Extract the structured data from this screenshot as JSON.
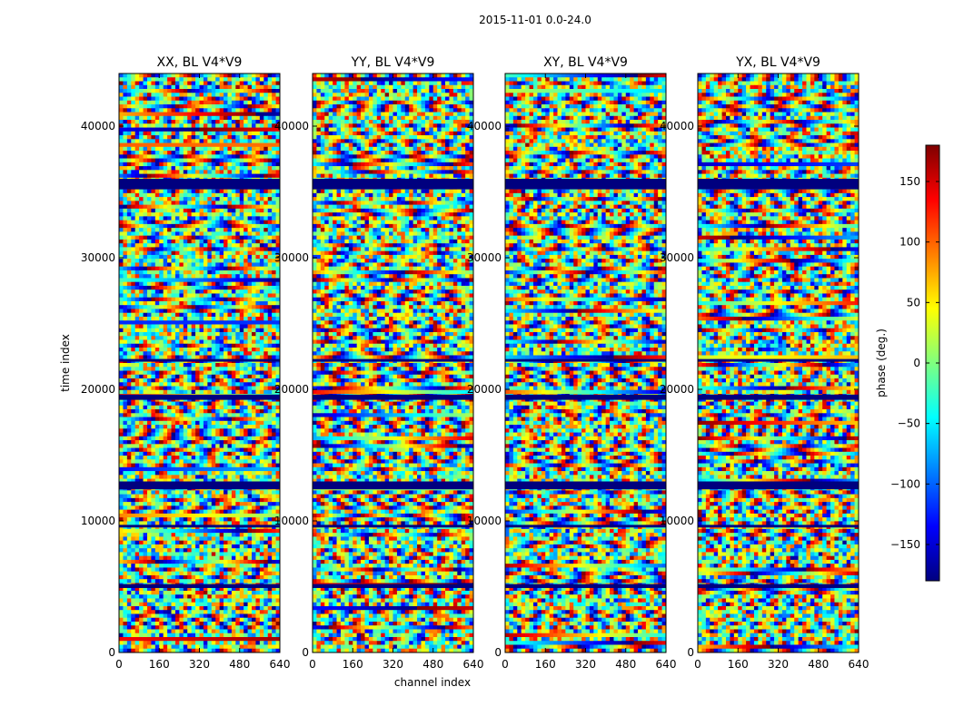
{
  "chart_data": {
    "type": "heatmap",
    "title": "2015-11-01 0.0-24.0",
    "xlabel": "channel index",
    "ylabel": "time index",
    "xlim": [
      0,
      640
    ],
    "ylim": [
      0,
      44000
    ],
    "x_ticks": [
      "0",
      "160",
      "320",
      "480",
      "640"
    ],
    "y_ticks": [
      "0",
      "10000",
      "20000",
      "30000",
      "40000"
    ],
    "x_tick_values": [
      0,
      160,
      320,
      480,
      640
    ],
    "y_tick_values": [
      0,
      10000,
      20000,
      30000,
      40000
    ],
    "panels": [
      {
        "title": "XX, BL V4*V9"
      },
      {
        "title": "YY, BL V4*V9"
      },
      {
        "title": "XY, BL V4*V9"
      },
      {
        "title": "YX, BL V4*V9"
      }
    ],
    "colormap": "jet",
    "colorbar": {
      "label": "phase (deg.)",
      "range": [
        -180,
        180
      ],
      "ticks": [
        "150",
        "100",
        "50",
        "0",
        "−50",
        "−100",
        "−150"
      ],
      "tick_values": [
        150,
        100,
        50,
        0,
        -50,
        -100,
        -150
      ],
      "colors": [
        "#00007f",
        "#0000ff",
        "#007fff",
        "#00ffff",
        "#7fff7f",
        "#ffff00",
        "#ff7f00",
        "#ff0000",
        "#7f0000"
      ]
    },
    "flagged_time_bands": [
      [
        36000,
        35200
      ],
      [
        22300,
        22100
      ],
      [
        19600,
        19200
      ],
      [
        13000,
        12400
      ],
      [
        9700,
        9500
      ],
      [
        5200,
        4900
      ]
    ],
    "axis_spine_color": "#000000"
  }
}
